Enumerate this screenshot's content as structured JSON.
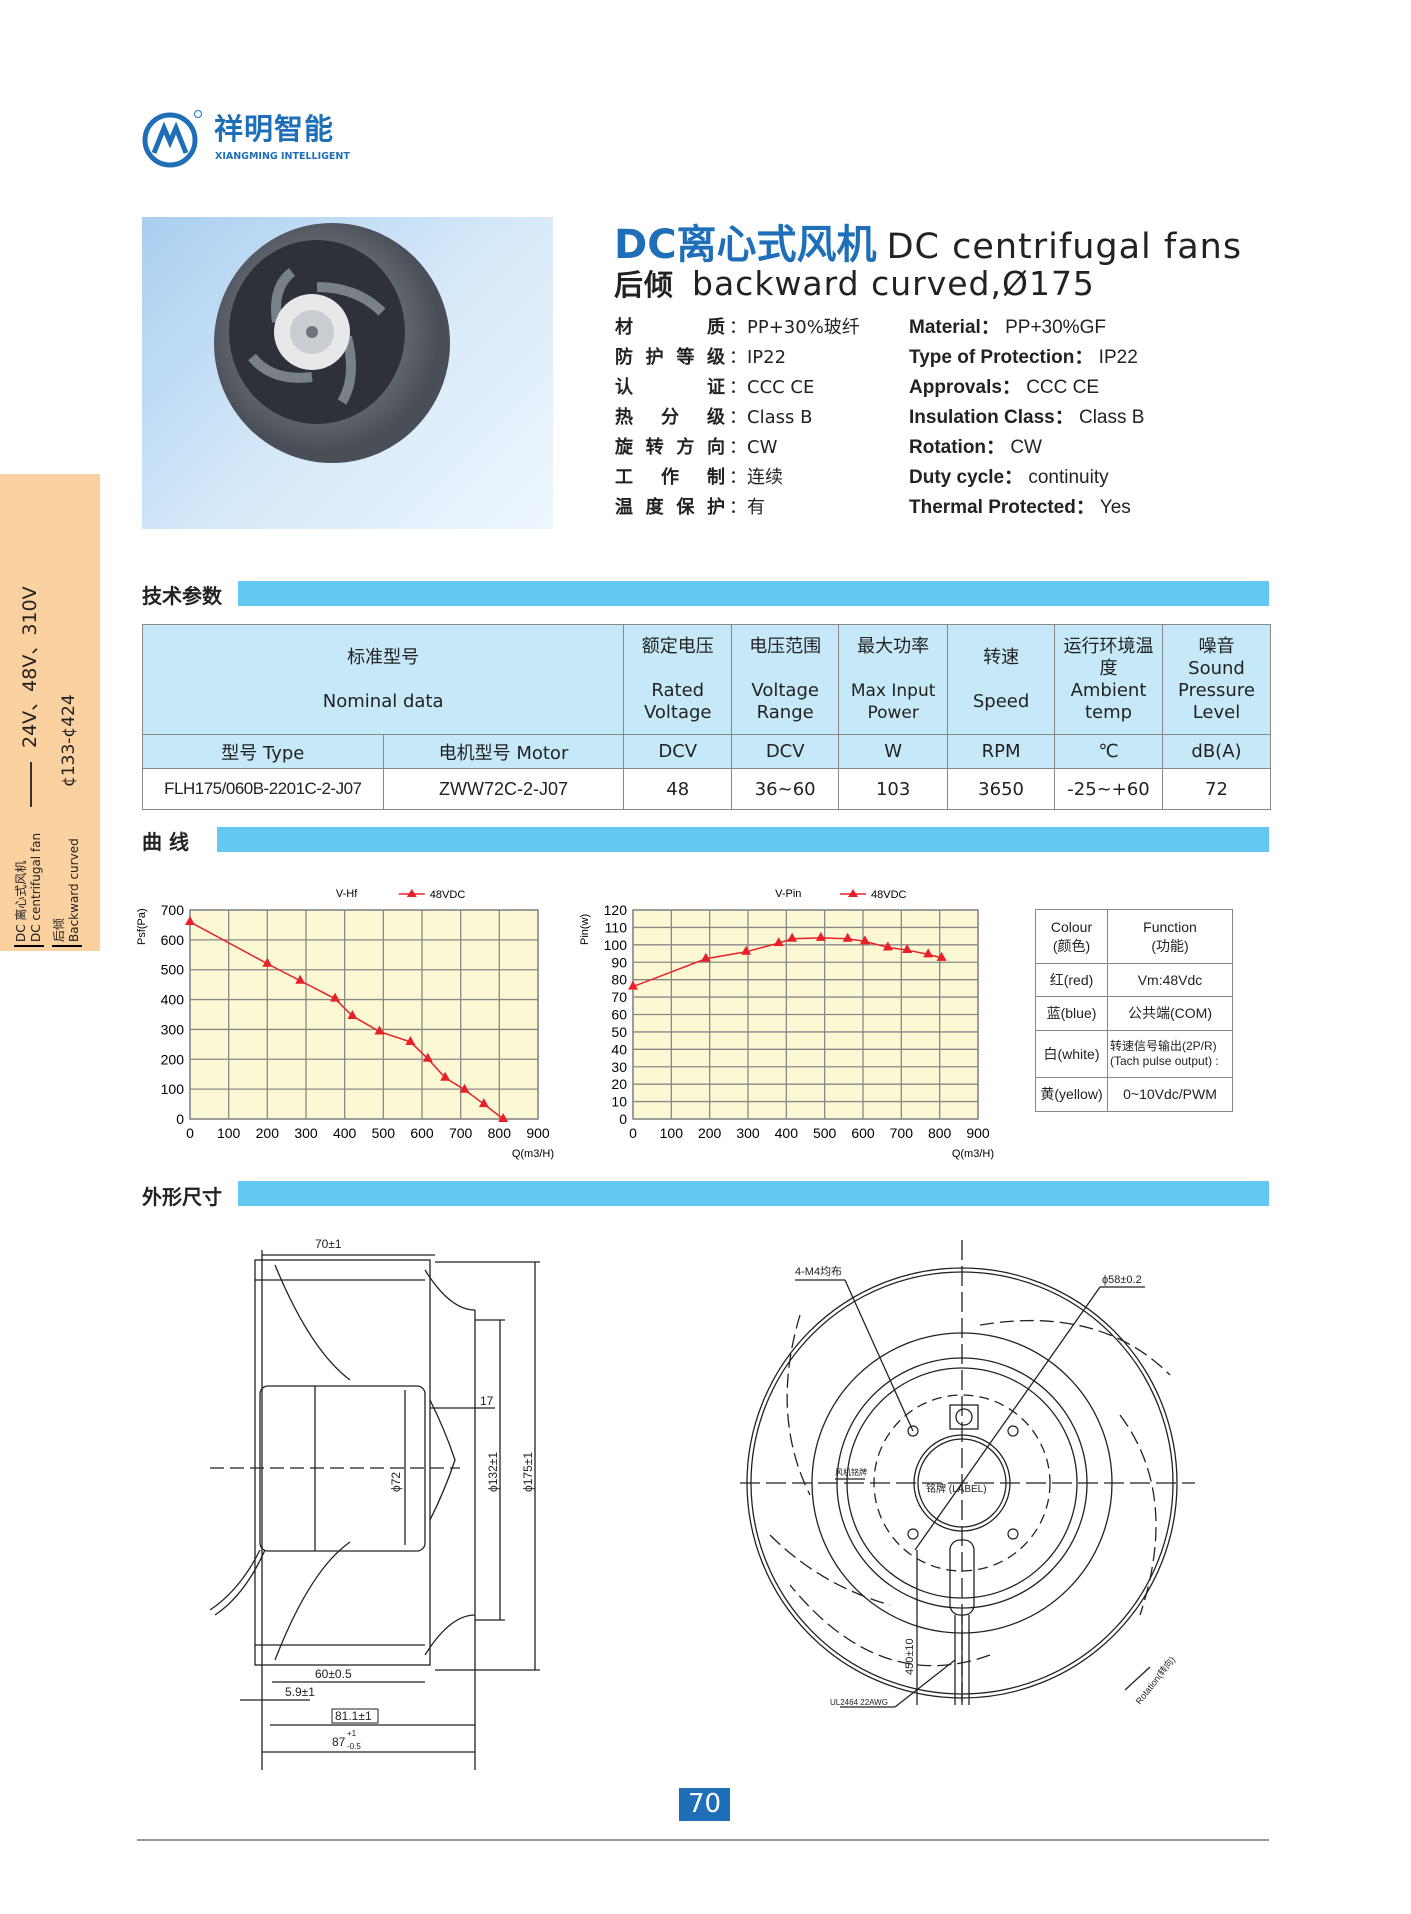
{
  "brand": {
    "name_cn": "祥明智能",
    "name_en": "XIANGMING INTELLIGENT",
    "color": "#1f6fb8"
  },
  "side_band": {
    "line1": "DC 离心式风机",
    "line2": "DC centrifugal fan",
    "line3": "后倾",
    "line4": "Backward curved",
    "voltages": "24V、48V、310V",
    "diameters": "¢133-¢424",
    "color": "#fcd1a0"
  },
  "title": {
    "cn": "DC离心式风机",
    "en": "DC centrifugal fans",
    "sub_cn": "后倾",
    "sub_en": "backward curved,Ø175"
  },
  "specs_cn": [
    {
      "label": "材质",
      "value": "PP+30%玻纤"
    },
    {
      "label": "防护等级",
      "value": "IP22"
    },
    {
      "label": "认证",
      "value": "CCC CE"
    },
    {
      "label": "热分级",
      "value": "Class B"
    },
    {
      "label": "旋转方向",
      "value": "CW"
    },
    {
      "label": "工作制",
      "value": "连续"
    },
    {
      "label": "温度保护",
      "value": "有"
    }
  ],
  "specs_en": [
    {
      "label": "Material：",
      "value": "PP+30%GF"
    },
    {
      "label": "Type of Protection：",
      "value": "IP22"
    },
    {
      "label": "Approvals：",
      "value": "CCC CE"
    },
    {
      "label": "Insulation Class：",
      "value": "Class B"
    },
    {
      "label": "Rotation：",
      "value": "CW"
    },
    {
      "label": "Duty cycle：",
      "value": "continuity"
    },
    {
      "label": "Thermal  Protected：",
      "value": "Yes"
    }
  ],
  "colon": "：",
  "sections": {
    "tech": "技术参数",
    "curve": "曲  线",
    "dims": "外形尺寸"
  },
  "table": {
    "headers": [
      {
        "cn": "标准型号",
        "en": "Nominal  data"
      },
      {
        "cn": "额定电压",
        "en": "Rated Voltage"
      },
      {
        "cn": "电压范围",
        "en": "Voltage Range"
      },
      {
        "cn": "最大功率",
        "en": "Max Input Power"
      },
      {
        "cn": "转速",
        "en": "Speed"
      },
      {
        "cn": "运行环境温度",
        "en": "Ambient temp"
      },
      {
        "cn": "噪音",
        "en": "Sound Pressure Level"
      }
    ],
    "units": [
      "型号 Type",
      "电机型号 Motor",
      "DCV",
      "DCV",
      "W",
      "RPM",
      "℃",
      "dB(A)"
    ],
    "rows": [
      [
        "FLH175/060B-2201C-2-J07",
        "ZWW72C-2-J07",
        "48",
        "36~60",
        "103",
        "3650",
        "-25~+60",
        "72"
      ]
    ]
  },
  "chart_data": [
    {
      "type": "line",
      "title": "V-Hf",
      "ylabel": "Psf(Pa)",
      "xlabel": "Q(m3/H)",
      "xlim": [
        0,
        900
      ],
      "ylim": [
        0,
        700
      ],
      "xticks": [
        0,
        100,
        200,
        300,
        400,
        500,
        600,
        700,
        800,
        900
      ],
      "yticks": [
        0,
        100,
        200,
        300,
        400,
        500,
        600,
        700
      ],
      "grid": true,
      "legend": "top",
      "background": "#fdf8d4",
      "series": [
        {
          "name": "48VDC",
          "color": "#e8202a",
          "marker": "triangle",
          "x": [
            0,
            200,
            285,
            375,
            420,
            490,
            570,
            615,
            660,
            710,
            760,
            810
          ],
          "y": [
            660,
            520,
            463,
            403,
            345,
            293,
            258,
            202,
            138,
            98,
            50,
            0
          ]
        }
      ]
    },
    {
      "type": "line",
      "title": "V-Pin",
      "ylabel": "Pin(w)",
      "xlabel": "Q(m3/H)",
      "xlim": [
        0,
        900
      ],
      "ylim": [
        0,
        120
      ],
      "xticks": [
        0,
        100,
        200,
        300,
        400,
        500,
        600,
        700,
        800,
        900
      ],
      "yticks": [
        0,
        10,
        20,
        30,
        40,
        50,
        60,
        70,
        80,
        90,
        100,
        110,
        120
      ],
      "grid": true,
      "legend": "top",
      "background": "#fdf8d4",
      "series": [
        {
          "name": "48VDC",
          "color": "#e8202a",
          "marker": "triangle",
          "x": [
            0,
            190,
            295,
            380,
            415,
            490,
            560,
            605,
            665,
            715,
            770,
            805
          ],
          "y": [
            76,
            92,
            96,
            101,
            103.5,
            104,
            103.5,
            102,
            98.5,
            97,
            94.5,
            92.5
          ]
        }
      ]
    }
  ],
  "wires": {
    "header": {
      "colour": "Colour",
      "colour_cn": "(颜色)",
      "function": "Function",
      "function_cn": "(功能)"
    },
    "rows": [
      {
        "colour": "红(red)",
        "function": "Vm:48Vdc"
      },
      {
        "colour": "蓝(blue)",
        "function": "公共端(COM)"
      },
      {
        "colour": "白(white)",
        "function": "转速信号输出(2P/R)",
        "function2": "(Tach pulse output) :"
      },
      {
        "colour": "黄(yellow)",
        "function": "0~10Vdc/PWM"
      }
    ]
  },
  "drawing": {
    "side": {
      "d70": "70±1",
      "d17": "17",
      "d72": "ϕ72",
      "d132": "ϕ132±1",
      "d175": "ϕ175±1",
      "d60": "60±0.5",
      "d59": "5.9±1",
      "d81": "81.1±1",
      "d87": "87",
      "d87_tol_up": "+1",
      "d87_tol_dn": "-0.5"
    },
    "front": {
      "m4": "4-M4均布",
      "d58": "ϕ58±0.2",
      "airflow": "风机铭牌",
      "label": "铭牌 (LABEL)",
      "lead": "450±10",
      "cable": "UL2464  22AWG",
      "rotation": "Rotation(转向)"
    }
  },
  "page_number": "70"
}
